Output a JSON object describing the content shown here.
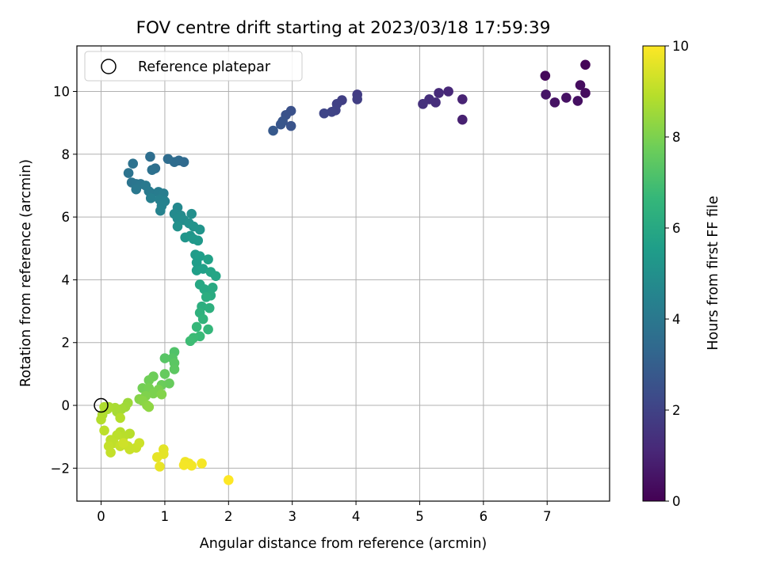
{
  "chart_data": {
    "type": "scatter",
    "title": "FOV centre drift starting at 2023/03/18 17:59:39",
    "xlabel": "Angular distance from reference (arcmin)",
    "ylabel": "Rotation from reference (arcmin)",
    "xlim": [
      -0.38,
      7.98
    ],
    "ylim": [
      -3.05,
      11.45
    ],
    "xticks": [
      0,
      1,
      2,
      3,
      4,
      5,
      6,
      7
    ],
    "yticks": [
      -2,
      0,
      2,
      4,
      6,
      8,
      10
    ],
    "ytick_labels": [
      "−2",
      "0",
      "2",
      "4",
      "6",
      "8",
      "10"
    ],
    "grid": true,
    "legend": {
      "placement": "top-left",
      "label": "Reference platepar"
    },
    "reference_point": [
      0,
      0
    ],
    "colorbar": {
      "label": "Hours from first FF file",
      "range": [
        0,
        10
      ],
      "ticks": [
        0,
        2,
        4,
        6,
        8,
        10
      ],
      "colormap": "viridis",
      "colors": [
        "#440154",
        "#482878",
        "#3e4989",
        "#31688e",
        "#26828e",
        "#1f9e89",
        "#35b779",
        "#6ece58",
        "#b5de2b",
        "#fde725"
      ]
    },
    "points": [
      [
        7.6,
        10.85,
        0.1
      ],
      [
        6.97,
        10.5,
        0.2
      ],
      [
        7.6,
        9.95,
        0.3
      ],
      [
        7.52,
        10.2,
        0.35
      ],
      [
        7.48,
        9.7,
        0.4
      ],
      [
        7.3,
        9.8,
        0.45
      ],
      [
        7.12,
        9.65,
        0.5
      ],
      [
        6.98,
        9.9,
        0.55
      ],
      [
        5.67,
        9.1,
        0.9
      ],
      [
        5.67,
        9.75,
        1.0
      ],
      [
        5.45,
        10.0,
        1.1
      ],
      [
        5.3,
        9.95,
        1.2
      ],
      [
        5.25,
        9.65,
        1.3
      ],
      [
        5.15,
        9.75,
        1.35
      ],
      [
        5.05,
        9.6,
        1.4
      ],
      [
        4.02,
        9.9,
        1.8
      ],
      [
        4.02,
        9.75,
        1.85
      ],
      [
        3.78,
        9.72,
        1.9
      ],
      [
        3.7,
        9.6,
        1.95
      ],
      [
        3.68,
        9.4,
        2.0
      ],
      [
        3.62,
        9.35,
        2.05
      ],
      [
        3.5,
        9.3,
        2.1
      ],
      [
        2.98,
        9.38,
        2.5
      ],
      [
        2.9,
        9.25,
        2.55
      ],
      [
        2.98,
        8.9,
        2.6
      ],
      [
        2.85,
        9.05,
        2.65
      ],
      [
        2.82,
        8.95,
        2.7
      ],
      [
        2.7,
        8.75,
        2.8
      ],
      [
        1.3,
        7.75,
        3.4
      ],
      [
        1.22,
        7.8,
        3.45
      ],
      [
        1.15,
        7.75,
        3.5
      ],
      [
        1.05,
        7.85,
        3.55
      ],
      [
        0.77,
        7.92,
        3.6
      ],
      [
        0.85,
        7.55,
        3.65
      ],
      [
        0.8,
        7.5,
        3.7
      ],
      [
        0.5,
        7.7,
        3.75
      ],
      [
        0.43,
        7.4,
        3.8
      ],
      [
        0.48,
        7.1,
        3.85
      ],
      [
        0.55,
        7.05,
        3.9
      ],
      [
        0.62,
        7.05,
        3.95
      ],
      [
        0.55,
        6.88,
        4.0
      ],
      [
        0.7,
        7.0,
        4.05
      ],
      [
        0.75,
        6.82,
        4.1
      ],
      [
        0.8,
        6.75,
        4.15
      ],
      [
        0.9,
        6.8,
        4.2
      ],
      [
        0.98,
        6.75,
        4.25
      ],
      [
        0.78,
        6.6,
        4.3
      ],
      [
        0.92,
        6.55,
        4.35
      ],
      [
        1.0,
        6.5,
        4.4
      ],
      [
        0.95,
        6.35,
        4.45
      ],
      [
        0.93,
        6.2,
        4.5
      ],
      [
        1.2,
        6.3,
        4.7
      ],
      [
        1.15,
        6.1,
        4.75
      ],
      [
        1.25,
        6.05,
        4.8
      ],
      [
        1.2,
        5.95,
        4.85
      ],
      [
        1.3,
        5.9,
        4.9
      ],
      [
        1.42,
        6.1,
        4.95
      ],
      [
        1.38,
        5.8,
        5.0
      ],
      [
        1.2,
        5.7,
        5.05
      ],
      [
        1.45,
        5.7,
        5.1
      ],
      [
        1.55,
        5.6,
        5.15
      ],
      [
        1.32,
        5.35,
        5.2
      ],
      [
        1.4,
        5.4,
        5.25
      ],
      [
        1.45,
        5.3,
        5.3
      ],
      [
        1.52,
        5.25,
        5.35
      ],
      [
        1.48,
        4.8,
        5.45
      ],
      [
        1.5,
        4.55,
        5.5
      ],
      [
        1.55,
        4.75,
        5.55
      ],
      [
        1.5,
        4.3,
        5.6
      ],
      [
        1.6,
        4.35,
        5.65
      ],
      [
        1.68,
        4.65,
        5.7
      ],
      [
        1.72,
        4.25,
        5.8
      ],
      [
        1.8,
        4.12,
        5.85
      ],
      [
        1.55,
        3.85,
        5.95
      ],
      [
        1.62,
        3.7,
        6.0
      ],
      [
        1.75,
        3.75,
        6.05
      ],
      [
        1.72,
        3.5,
        6.1
      ],
      [
        1.65,
        3.45,
        6.2
      ],
      [
        1.58,
        3.15,
        6.25
      ],
      [
        1.7,
        3.1,
        6.3
      ],
      [
        1.55,
        2.95,
        6.4
      ],
      [
        1.6,
        2.75,
        6.5
      ],
      [
        1.68,
        2.42,
        6.6
      ],
      [
        1.5,
        2.5,
        6.65
      ],
      [
        1.55,
        2.2,
        6.75
      ],
      [
        1.45,
        2.15,
        6.8
      ],
      [
        1.4,
        2.05,
        6.85
      ],
      [
        1.15,
        1.7,
        7.2
      ],
      [
        1.12,
        1.5,
        7.3
      ],
      [
        1.0,
        1.5,
        7.35
      ],
      [
        1.15,
        1.35,
        7.4
      ],
      [
        1.15,
        1.15,
        7.45
      ],
      [
        1.0,
        1.0,
        7.6
      ],
      [
        1.07,
        0.7,
        7.65
      ],
      [
        0.95,
        0.65,
        7.7
      ],
      [
        0.82,
        0.92,
        7.75
      ],
      [
        0.75,
        0.8,
        7.8
      ],
      [
        0.65,
        0.55,
        7.85
      ],
      [
        0.75,
        0.55,
        7.9
      ],
      [
        0.9,
        0.5,
        7.95
      ],
      [
        0.82,
        0.38,
        8.0
      ],
      [
        0.7,
        0.3,
        8.05
      ],
      [
        0.95,
        0.35,
        8.1
      ],
      [
        0.6,
        0.2,
        8.15
      ],
      [
        0.65,
        0.15,
        8.2
      ],
      [
        0.72,
        0.0,
        8.25
      ],
      [
        0.75,
        -0.05,
        8.3
      ],
      [
        0.42,
        0.08,
        8.5
      ],
      [
        0.38,
        -0.05,
        8.55
      ],
      [
        0.32,
        -0.12,
        8.6
      ],
      [
        0.25,
        -0.2,
        8.65
      ],
      [
        0.22,
        -0.08,
        8.7
      ],
      [
        0.12,
        -0.05,
        8.72
      ],
      [
        0.1,
        -0.12,
        8.75
      ],
      [
        0.05,
        -0.05,
        8.78
      ],
      [
        0.02,
        -0.3,
        8.8
      ],
      [
        0.0,
        -0.45,
        8.85
      ],
      [
        0.3,
        -0.4,
        8.88
      ],
      [
        0.3,
        -0.85,
        8.9
      ],
      [
        0.45,
        -0.9,
        8.92
      ],
      [
        0.35,
        -1.0,
        8.95
      ],
      [
        0.25,
        -0.95,
        8.98
      ],
      [
        0.05,
        -0.8,
        9.0
      ],
      [
        0.15,
        -1.1,
        9.02
      ],
      [
        0.2,
        -1.2,
        9.05
      ],
      [
        0.12,
        -1.3,
        9.1
      ],
      [
        0.15,
        -1.5,
        9.12
      ],
      [
        0.3,
        -1.3,
        9.15
      ],
      [
        0.42,
        -1.3,
        9.18
      ],
      [
        0.45,
        -1.4,
        9.2
      ],
      [
        0.55,
        -1.35,
        9.22
      ],
      [
        0.6,
        -1.2,
        9.25
      ],
      [
        0.35,
        -1.2,
        9.28
      ],
      [
        0.98,
        -1.4,
        9.6
      ],
      [
        0.98,
        -1.55,
        9.62
      ],
      [
        0.88,
        -1.65,
        9.65
      ],
      [
        0.92,
        -1.95,
        9.68
      ],
      [
        1.32,
        -1.8,
        9.8
      ],
      [
        1.38,
        -1.85,
        9.82
      ],
      [
        1.42,
        -1.92,
        9.84
      ],
      [
        1.3,
        -1.9,
        9.86
      ],
      [
        1.58,
        -1.85,
        9.88
      ],
      [
        2.0,
        -2.38,
        10.0
      ]
    ]
  }
}
